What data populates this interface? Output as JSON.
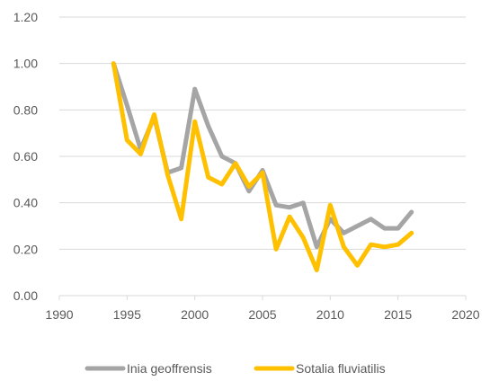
{
  "chart_data": {
    "type": "line",
    "xlim": [
      1990,
      2020
    ],
    "ylim": [
      0,
      1.2
    ],
    "x_ticks": [
      "1990",
      "1995",
      "2000",
      "2005",
      "2010",
      "2015",
      "2020"
    ],
    "y_ticks": [
      "0.00",
      "0.20",
      "0.40",
      "0.60",
      "0.80",
      "1.00",
      "1.20"
    ],
    "grid": "horizontal",
    "legend_position": "bottom",
    "series": [
      {
        "name": "Inia geoffrensis",
        "color": "#A5A5A5",
        "x": [
          1994,
          1995,
          1996,
          1997,
          1998,
          1999,
          2000,
          2001,
          2002,
          2003,
          2004,
          2005,
          2006,
          2007,
          2008,
          2009,
          2010,
          2011,
          2012,
          2013,
          2014,
          2015,
          2016
        ],
        "values": [
          1.0,
          0.82,
          0.63,
          0.77,
          0.53,
          0.55,
          0.89,
          0.73,
          0.6,
          0.57,
          0.45,
          0.54,
          0.39,
          0.38,
          0.4,
          0.21,
          0.33,
          0.27,
          0.3,
          0.33,
          0.29,
          0.29,
          0.36
        ]
      },
      {
        "name": "Sotalia fluviatilis",
        "color": "#FFC000",
        "x": [
          1994,
          1995,
          1996,
          1997,
          1998,
          1999,
          2000,
          2001,
          2002,
          2003,
          2004,
          2005,
          2006,
          2007,
          2008,
          2009,
          2010,
          2011,
          2012,
          2013,
          2014,
          2015,
          2016
        ],
        "values": [
          1.0,
          0.67,
          0.61,
          0.78,
          0.52,
          0.33,
          0.75,
          0.51,
          0.48,
          0.57,
          0.47,
          0.53,
          0.2,
          0.34,
          0.25,
          0.11,
          0.39,
          0.21,
          0.13,
          0.22,
          0.21,
          0.22,
          0.27
        ]
      }
    ]
  }
}
